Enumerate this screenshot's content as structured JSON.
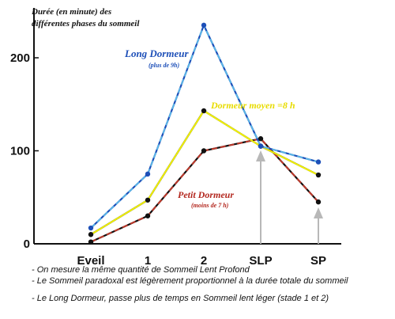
{
  "chart_data": {
    "type": "line",
    "ylabel_lines": [
      "Durée (en minute) des",
      "différentes phases  du sommeil"
    ],
    "categories": [
      "Eveil",
      "1",
      "2",
      "SLP",
      "SP"
    ],
    "ylim": [
      0,
      240
    ],
    "yticks": [
      0,
      100,
      200
    ],
    "series": [
      {
        "name": "Long Dormeur",
        "subtitle": "(plus de 9h)",
        "color": "#1d4fb8",
        "dash_color": "#5ab4e6",
        "values": [
          17,
          75,
          235,
          105,
          88
        ]
      },
      {
        "name": "Dormeur moyen =8 h",
        "subtitle": "",
        "color": "#111111",
        "dash_color": "#f2f200",
        "values": [
          10,
          47,
          143,
          105,
          74
        ]
      },
      {
        "name": "Petit Dormeur",
        "subtitle": "(moins de 7 h)",
        "color": "#111111",
        "dash_color": "#c0392b",
        "values": [
          2,
          30,
          100,
          113,
          45
        ]
      }
    ],
    "arrows_at": [
      "SLP",
      "SP"
    ]
  },
  "notes": [
    "- On mesure la même quantité de Sommeil Lent Profond",
    "- Le Sommeil paradoxal est légèrement proportionnel à la durée totale du sommeil",
    "- Le Long Dormeur, passe plus de temps en Sommeil lent léger (stade 1 et 2)"
  ]
}
